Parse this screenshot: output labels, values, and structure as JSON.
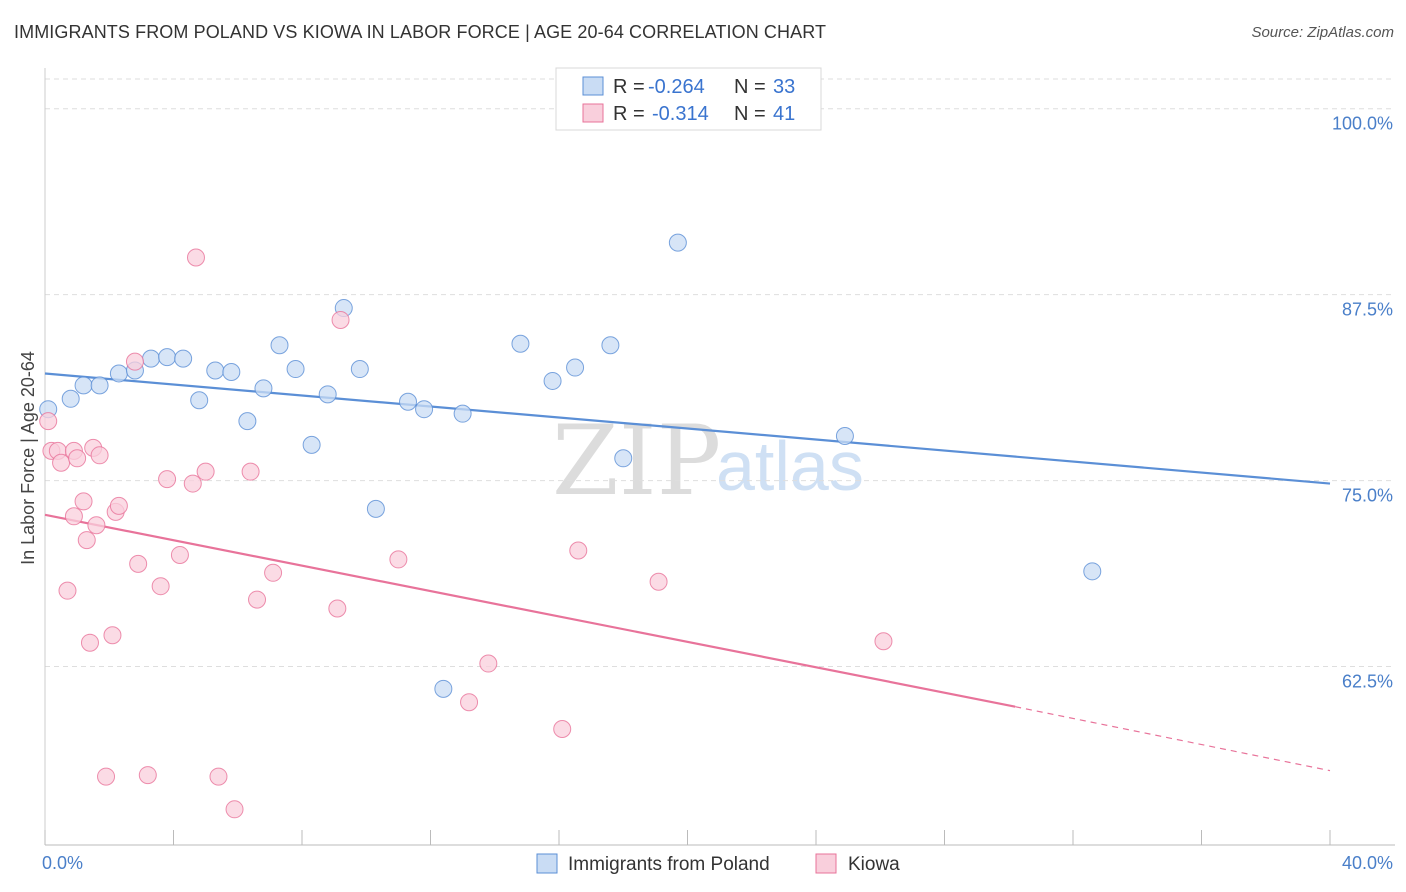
{
  "title": "IMMIGRANTS FROM POLAND VS KIOWA IN LABOR FORCE | AGE 20-64 CORRELATION CHART",
  "source": "Source: ZipAtlas.com",
  "watermark": {
    "zip": "ZIP",
    "atlas": "atlas"
  },
  "legend_top": {
    "r_label": "R =",
    "n_label": "N =",
    "rows": [
      {
        "r": "-0.264",
        "n": "33"
      },
      {
        "r": "-0.314",
        "n": "41"
      }
    ]
  },
  "colors": {
    "poland": "#5b8fd6",
    "poland_fill": "#c9dcf4",
    "kiowa": "#e8739a",
    "kiowa_fill": "#f9cfdc",
    "axis_text": "#4a7fc9"
  },
  "chart_data": {
    "type": "scatter",
    "xlabel": "",
    "ylabel": "In Labor Force | Age 20-64",
    "xlim": [
      0,
      40
    ],
    "ylim": [
      50.5,
      102
    ],
    "x_ticks": [
      {
        "v": 0,
        "label": "0.0%"
      },
      {
        "v": 40,
        "label": "40.0%"
      }
    ],
    "y_ticks": [
      {
        "v": 62.5,
        "label": "62.5%"
      },
      {
        "v": 75.0,
        "label": "75.0%"
      },
      {
        "v": 87.5,
        "label": "87.5%"
      },
      {
        "v": 100.0,
        "label": "100.0%"
      }
    ],
    "grid": true,
    "legend_position": "top-center",
    "series": [
      {
        "name": "Immigrants from Poland",
        "color": "#5b8fd6",
        "points": [
          [
            0.1,
            79.8
          ],
          [
            0.8,
            80.5
          ],
          [
            1.2,
            81.4
          ],
          [
            1.7,
            81.4
          ],
          [
            2.3,
            82.2
          ],
          [
            2.8,
            82.4
          ],
          [
            3.3,
            83.2
          ],
          [
            3.8,
            83.3
          ],
          [
            4.3,
            83.2
          ],
          [
            4.8,
            80.4
          ],
          [
            5.3,
            82.4
          ],
          [
            5.8,
            82.3
          ],
          [
            6.3,
            79.0
          ],
          [
            6.8,
            81.2
          ],
          [
            7.3,
            84.1
          ],
          [
            7.8,
            82.5
          ],
          [
            8.3,
            77.4
          ],
          [
            8.8,
            80.8
          ],
          [
            9.3,
            86.6
          ],
          [
            9.8,
            82.5
          ],
          [
            10.3,
            73.1
          ],
          [
            11.3,
            80.3
          ],
          [
            11.8,
            79.8
          ],
          [
            13.0,
            79.5
          ],
          [
            14.8,
            84.2
          ],
          [
            15.8,
            81.7
          ],
          [
            16.5,
            82.6
          ],
          [
            17.6,
            84.1
          ],
          [
            18.0,
            76.5
          ],
          [
            19.7,
            91.0
          ],
          [
            12.4,
            61.0
          ],
          [
            24.9,
            78.0
          ],
          [
            32.6,
            68.9
          ]
        ],
        "trend": {
          "x": [
            0,
            40
          ],
          "y": [
            82.2,
            74.8
          ]
        }
      },
      {
        "name": "Kiowa",
        "color": "#e8739a",
        "points": [
          [
            0.1,
            79.0
          ],
          [
            0.2,
            77.0
          ],
          [
            0.4,
            77.0
          ],
          [
            0.5,
            76.2
          ],
          [
            0.7,
            67.6
          ],
          [
            0.9,
            77.0
          ],
          [
            0.9,
            72.6
          ],
          [
            1.0,
            76.5
          ],
          [
            1.2,
            73.6
          ],
          [
            1.3,
            71.0
          ],
          [
            1.4,
            64.1
          ],
          [
            1.5,
            77.2
          ],
          [
            1.6,
            72.0
          ],
          [
            1.7,
            76.7
          ],
          [
            1.9,
            55.1
          ],
          [
            2.1,
            64.6
          ],
          [
            2.2,
            72.9
          ],
          [
            2.3,
            73.3
          ],
          [
            2.8,
            83.0
          ],
          [
            2.9,
            69.4
          ],
          [
            3.2,
            55.2
          ],
          [
            3.6,
            67.9
          ],
          [
            3.8,
            75.1
          ],
          [
            4.2,
            70.0
          ],
          [
            4.6,
            74.8
          ],
          [
            4.7,
            90.0
          ],
          [
            5.0,
            75.6
          ],
          [
            5.4,
            55.1
          ],
          [
            5.9,
            52.9
          ],
          [
            6.4,
            75.6
          ],
          [
            6.6,
            67.0
          ],
          [
            7.1,
            68.8
          ],
          [
            9.1,
            66.4
          ],
          [
            9.2,
            85.8
          ],
          [
            11.0,
            69.7
          ],
          [
            13.2,
            60.1
          ],
          [
            13.8,
            62.7
          ],
          [
            16.1,
            58.3
          ],
          [
            16.6,
            70.3
          ],
          [
            19.1,
            68.2
          ],
          [
            26.1,
            64.2
          ]
        ],
        "trend": {
          "x": [
            0,
            30.2
          ],
          "y": [
            72.7,
            59.8
          ]
        },
        "trend_extension": {
          "x": [
            30.2,
            40
          ],
          "y": [
            59.8,
            55.5
          ]
        }
      }
    ]
  }
}
